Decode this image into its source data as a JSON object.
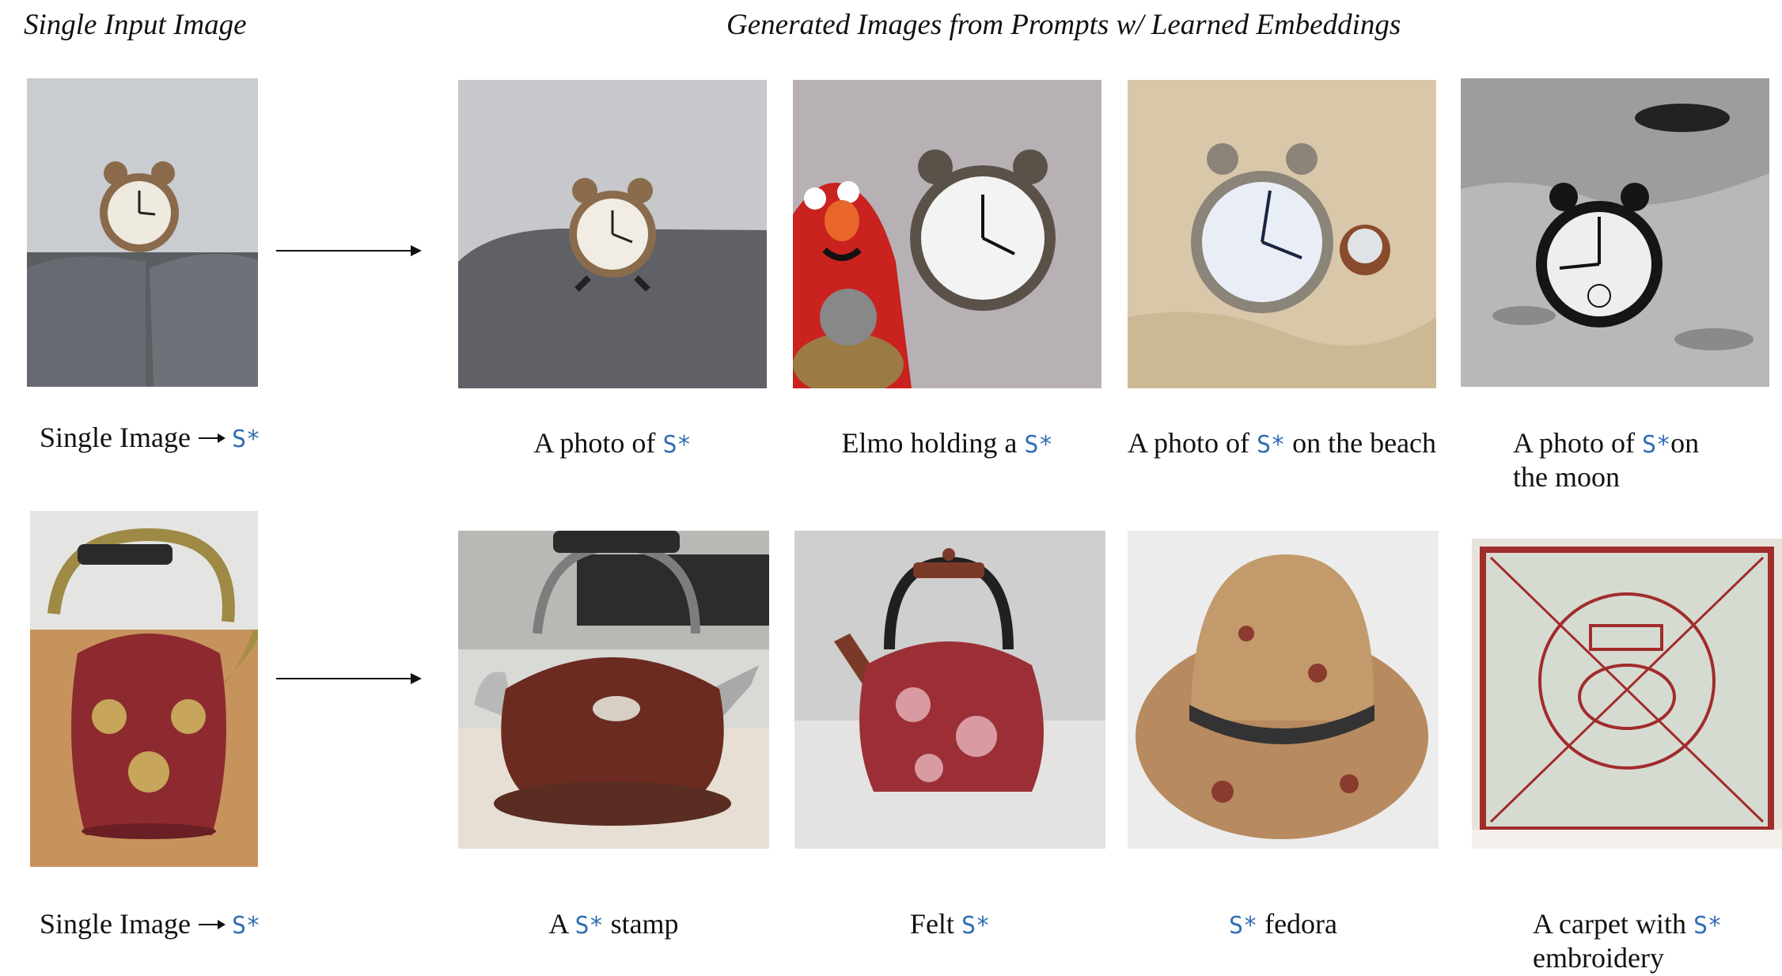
{
  "headers": {
    "left": "Single Input Image",
    "right": "Generated Images from Prompts w/ Learned Embeddings"
  },
  "token": "S*",
  "rows": [
    {
      "input_caption": "Single Image",
      "prompts": [
        {
          "pre": "A photo of ",
          "post": ""
        },
        {
          "pre": "Elmo holding a ",
          "post": ""
        },
        {
          "pre": "A photo of ",
          "post": " on the beach"
        },
        {
          "pre": "A photo of ",
          "post": "on",
          "line2": "the moon"
        }
      ]
    },
    {
      "input_caption": "Single Image",
      "prompts": [
        {
          "pre": "A ",
          "post": "  stamp"
        },
        {
          "pre": "Felt ",
          "post": ""
        },
        {
          "pre": "",
          "post": "  fedora"
        },
        {
          "pre": "A carpet with ",
          "post": "",
          "line2": "embroidery"
        }
      ]
    }
  ]
}
